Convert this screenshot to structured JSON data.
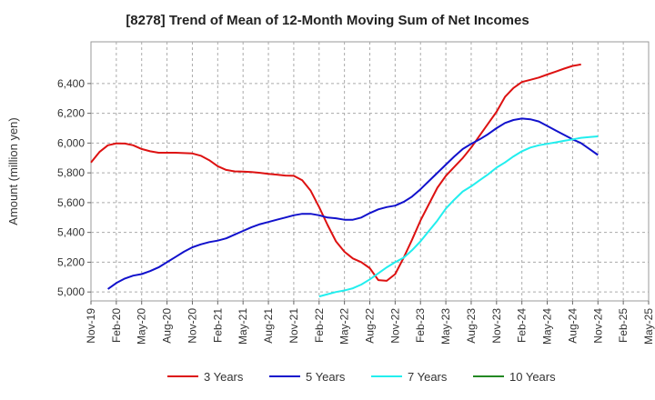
{
  "chart_data": {
    "type": "line",
    "title": "[8278]  Trend of Mean of 12-Month Moving Sum of Net Incomes",
    "ylabel": "Amount (million yen)",
    "xlabel": "",
    "ylim": [
      4940,
      6680
    ],
    "yticks": [
      5000,
      5200,
      5400,
      5600,
      5800,
      6000,
      6200,
      6400
    ],
    "ytick_labels": [
      "5,000",
      "5,200",
      "5,400",
      "5,600",
      "5,800",
      "6,000",
      "6,200",
      "6,400"
    ],
    "xticks": [
      "Nov-19",
      "Feb-20",
      "May-20",
      "Aug-20",
      "Nov-20",
      "Feb-21",
      "May-21",
      "Aug-21",
      "Nov-21",
      "Feb-22",
      "May-22",
      "Aug-22",
      "Nov-22",
      "Feb-23",
      "May-23",
      "Aug-23",
      "Nov-23",
      "Feb-24",
      "May-24",
      "Aug-24",
      "Nov-24",
      "Feb-25",
      "May-25"
    ],
    "grid": true,
    "legend_position": "bottom",
    "series": [
      {
        "name": "3 Years",
        "color": "#dd1111",
        "start_index": 0,
        "values": [
          5870,
          5940,
          5985,
          5998,
          5997,
          5985,
          5960,
          5945,
          5935,
          5935,
          5935,
          5933,
          5930,
          5915,
          5885,
          5845,
          5820,
          5810,
          5808,
          5805,
          5800,
          5793,
          5788,
          5782,
          5780,
          5750,
          5680,
          5570,
          5450,
          5340,
          5270,
          5225,
          5200,
          5160,
          5080,
          5075,
          5120,
          5230,
          5350,
          5480,
          5590,
          5700,
          5780,
          5840,
          5900,
          5970,
          6050,
          6130,
          6210,
          6310,
          6370,
          6410,
          6425,
          6440,
          6460,
          6480,
          6500,
          6518,
          6528
        ]
      },
      {
        "name": "5 Years",
        "color": "#1111cc",
        "start_index": 2,
        "values": [
          5020,
          5060,
          5090,
          5110,
          5120,
          5140,
          5165,
          5200,
          5235,
          5270,
          5300,
          5320,
          5335,
          5345,
          5360,
          5385,
          5410,
          5435,
          5455,
          5470,
          5485,
          5500,
          5515,
          5525,
          5525,
          5515,
          5500,
          5495,
          5485,
          5485,
          5500,
          5530,
          5555,
          5570,
          5580,
          5605,
          5640,
          5690,
          5745,
          5800,
          5855,
          5910,
          5960,
          5995,
          6025,
          6060,
          6100,
          6135,
          6155,
          6165,
          6160,
          6145,
          6115,
          6085,
          6055,
          6025,
          6000,
          5960,
          5920
        ]
      },
      {
        "name": "7 Years",
        "color": "#22eeee",
        "start_index": 27,
        "values": [
          4970,
          4985,
          5000,
          5010,
          5025,
          5050,
          5085,
          5125,
          5165,
          5200,
          5230,
          5280,
          5340,
          5410,
          5480,
          5560,
          5620,
          5675,
          5710,
          5750,
          5790,
          5835,
          5870,
          5910,
          5945,
          5970,
          5985,
          5995,
          6005,
          6015,
          6025,
          6035,
          6040,
          6045
        ]
      },
      {
        "name": "10 Years",
        "color": "#228822",
        "start_index": 0,
        "values": []
      }
    ]
  }
}
